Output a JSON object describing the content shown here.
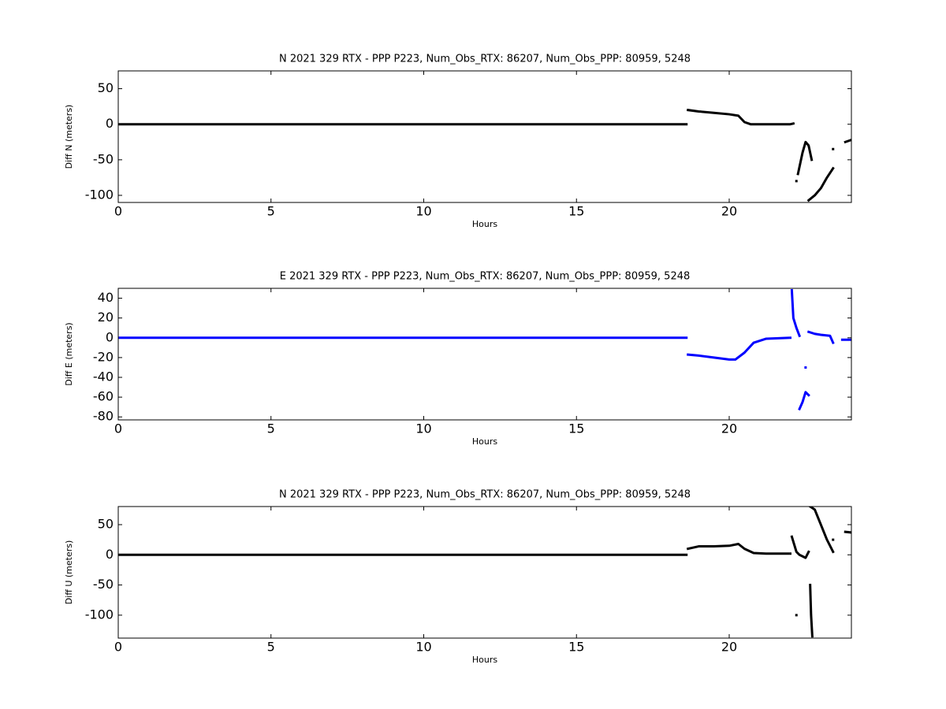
{
  "chart_data": [
    {
      "type": "line",
      "title": "N 2021 329 RTX - PPP  P223, Num_Obs_RTX: 86207, Num_Obs_PPP: 80959, 5248",
      "xlabel": "Hours",
      "ylabel": "Diff N (meters)",
      "color": "#000000",
      "xlim": [
        0,
        24
      ],
      "xticks": [
        0,
        5,
        10,
        15,
        20
      ],
      "ylim": [
        -110,
        75
      ],
      "yticks": [
        -100,
        -50,
        0,
        50
      ],
      "x": [
        0,
        17.5,
        18.6,
        null,
        18.65,
        19,
        19.5,
        20,
        20.3,
        20.5,
        20.7,
        22,
        22.1,
        null,
        22.2,
        null,
        22.25,
        22.4,
        22.5,
        22.6,
        22.7,
        null,
        22.6,
        22.8,
        23,
        23.2,
        23.4,
        null,
        23.4,
        null,
        23.8,
        24
      ],
      "values": [
        0,
        0,
        0,
        null,
        20,
        18,
        16,
        14,
        12,
        3,
        0,
        0,
        1,
        null,
        -80,
        null,
        -70,
        -40,
        -25,
        -30,
        -50,
        null,
        -107,
        -100,
        -90,
        -75,
        -62,
        null,
        -35,
        null,
        -25,
        -22
      ]
    },
    {
      "type": "line",
      "title": "E 2021 329 RTX - PPP  P223, Num_Obs_RTX: 86207, Num_Obs_PPP: 80959, 5248",
      "xlabel": "Hours",
      "ylabel": "Diff E (meters)",
      "color": "#0000ff",
      "xlim": [
        0,
        24
      ],
      "xticks": [
        0,
        5,
        10,
        15,
        20
      ],
      "ylim": [
        -83,
        50
      ],
      "yticks": [
        -80,
        -60,
        -40,
        -20,
        0,
        20,
        40
      ],
      "x": [
        0,
        18.6,
        null,
        18.65,
        19,
        19.5,
        20,
        20.2,
        20.5,
        20.8,
        21.2,
        22,
        null,
        22.05,
        22.1,
        22.2,
        22.3,
        null,
        22.3,
        22.4,
        22.5,
        22.6,
        null,
        22.5,
        null,
        22.6,
        22.8,
        23,
        23.3,
        23.4,
        null,
        23.7,
        24
      ],
      "values": [
        0,
        0,
        null,
        -17,
        -18,
        -20,
        -22,
        -22,
        -15,
        -5,
        -1,
        0,
        null,
        48,
        20,
        10,
        2,
        null,
        -72,
        -65,
        -55,
        -58,
        null,
        -30,
        null,
        6,
        4,
        3,
        2,
        -5,
        null,
        -2,
        -2
      ]
    },
    {
      "type": "line",
      "title": "N 2021 329 RTX - PPP  P223, Num_Obs_RTX: 86207, Num_Obs_PPP: 80959, 5248",
      "xlabel": "Hours",
      "ylabel": "Diff U (meters)",
      "color": "#000000",
      "xlim": [
        0,
        24
      ],
      "xticks": [
        0,
        5,
        10,
        15,
        20
      ],
      "ylim": [
        -138,
        80
      ],
      "yticks": [
        -100,
        -50,
        0,
        50
      ],
      "x": [
        0,
        18.6,
        null,
        18.65,
        19,
        19.5,
        20,
        20.3,
        20.5,
        20.8,
        21.2,
        22,
        null,
        22.05,
        22.2,
        22.3,
        22.5,
        22.6,
        null,
        22.2,
        null,
        22.65,
        22.68,
        22.72,
        null,
        22.65,
        22.8,
        23,
        23.2,
        23.4,
        null,
        23.4,
        null,
        23.8,
        24
      ],
      "values": [
        0,
        0,
        null,
        10,
        14,
        14,
        15,
        18,
        10,
        3,
        2,
        2,
        null,
        30,
        5,
        0,
        -5,
        5,
        null,
        -100,
        null,
        -50,
        -100,
        -135,
        null,
        80,
        75,
        50,
        25,
        5,
        null,
        25,
        null,
        38,
        37
      ]
    }
  ]
}
